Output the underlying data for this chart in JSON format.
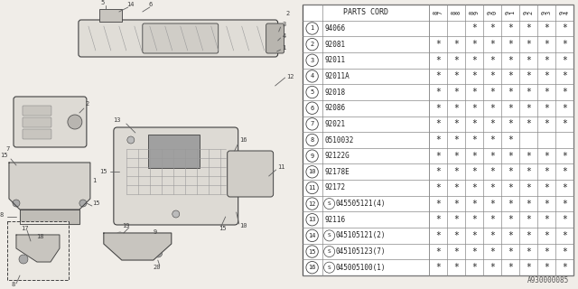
{
  "diagram_id": "A930000085",
  "bg_color": "#f0ede8",
  "header_years": [
    "8\n7",
    "8\n8",
    "8\n9",
    "9\n0",
    "9\n1",
    "9\n2",
    "9\n3",
    "9\n4"
  ],
  "parts": [
    {
      "num": "1",
      "code": "94066",
      "is_s": false,
      "marks": [
        0,
        0,
        1,
        1,
        1,
        1,
        1,
        1
      ]
    },
    {
      "num": "2",
      "code": "92081",
      "is_s": false,
      "marks": [
        1,
        1,
        1,
        1,
        1,
        1,
        1,
        1
      ]
    },
    {
      "num": "3",
      "code": "92011",
      "is_s": false,
      "marks": [
        1,
        1,
        1,
        1,
        1,
        1,
        1,
        1
      ]
    },
    {
      "num": "4",
      "code": "92011A",
      "is_s": false,
      "marks": [
        1,
        1,
        1,
        1,
        1,
        1,
        1,
        1
      ]
    },
    {
      "num": "5",
      "code": "92018",
      "is_s": false,
      "marks": [
        1,
        1,
        1,
        1,
        1,
        1,
        1,
        1
      ]
    },
    {
      "num": "6",
      "code": "92086",
      "is_s": false,
      "marks": [
        1,
        1,
        1,
        1,
        1,
        1,
        1,
        1
      ]
    },
    {
      "num": "7",
      "code": "92021",
      "is_s": false,
      "marks": [
        1,
        1,
        1,
        1,
        1,
        1,
        1,
        1
      ]
    },
    {
      "num": "8",
      "code": "0510032",
      "is_s": false,
      "marks": [
        1,
        1,
        1,
        1,
        1,
        0,
        0,
        0
      ]
    },
    {
      "num": "9",
      "code": "92122G",
      "is_s": false,
      "marks": [
        1,
        1,
        1,
        1,
        1,
        1,
        1,
        1
      ]
    },
    {
      "num": "10",
      "code": "92178E",
      "is_s": false,
      "marks": [
        1,
        1,
        1,
        1,
        1,
        1,
        1,
        1
      ]
    },
    {
      "num": "11",
      "code": "92172",
      "is_s": false,
      "marks": [
        1,
        1,
        1,
        1,
        1,
        1,
        1,
        1
      ]
    },
    {
      "num": "12",
      "code": "045505121(4)",
      "is_s": true,
      "marks": [
        1,
        1,
        1,
        1,
        1,
        1,
        1,
        1
      ]
    },
    {
      "num": "13",
      "code": "92116",
      "is_s": false,
      "marks": [
        1,
        1,
        1,
        1,
        1,
        1,
        1,
        1
      ]
    },
    {
      "num": "14",
      "code": "045105121(2)",
      "is_s": true,
      "marks": [
        1,
        1,
        1,
        1,
        1,
        1,
        1,
        1
      ]
    },
    {
      "num": "15",
      "code": "045105123(7)",
      "is_s": true,
      "marks": [
        1,
        1,
        1,
        1,
        1,
        1,
        1,
        1
      ]
    },
    {
      "num": "16",
      "code": "045005100(1)",
      "is_s": true,
      "marks": [
        1,
        1,
        1,
        1,
        1,
        1,
        1,
        1
      ]
    }
  ]
}
